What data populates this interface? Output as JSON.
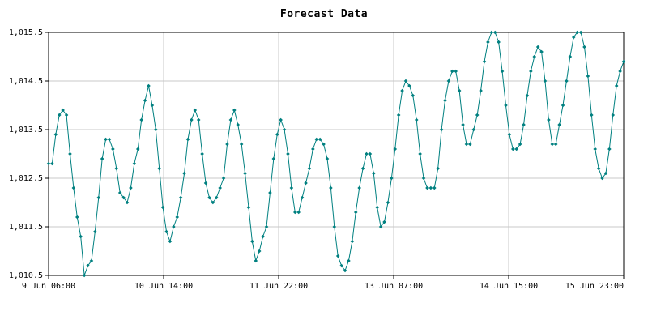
{
  "chart_data": {
    "type": "line",
    "title": "Forecast Data",
    "xlabel": "",
    "ylabel": "",
    "grid": true,
    "line_color": "#008080",
    "marker_color": "#008080",
    "y_tick_labels": [
      "1,010.5",
      "1,011.5",
      "1,012.5",
      "1,013.5",
      "1,014.5",
      "1,015.5"
    ],
    "y_ticks": [
      1010.5,
      1011.5,
      1012.5,
      1013.5,
      1014.5,
      1015.5
    ],
    "ylim": [
      1010.5,
      1015.5
    ],
    "x_tick_labels": [
      "9 Jun 06:00",
      "10 Jun 14:00",
      "11 Jun 22:00",
      "13 Jun 07:00",
      "14 Jun 15:00",
      "15 Jun 23:00"
    ],
    "x_interval_hours": 1,
    "series": [
      {
        "values": [
          1012.8,
          1012.8,
          1013.4,
          1013.8,
          1013.9,
          1013.8,
          1013.0,
          1012.3,
          1011.7,
          1011.3,
          1010.5,
          1010.7,
          1010.8,
          1011.4,
          1012.1,
          1012.9,
          1013.3,
          1013.3,
          1013.1,
          1012.7,
          1012.2,
          1012.1,
          1012.0,
          1012.3,
          1012.8,
          1013.1,
          1013.7,
          1014.1,
          1014.4,
          1014.0,
          1013.5,
          1012.7,
          1011.9,
          1011.4,
          1011.2,
          1011.5,
          1011.7,
          1012.1,
          1012.6,
          1013.3,
          1013.7,
          1013.9,
          1013.7,
          1013.0,
          1012.4,
          1012.1,
          1012.0,
          1012.1,
          1012.3,
          1012.5,
          1013.2,
          1013.7,
          1013.9,
          1013.6,
          1013.2,
          1012.6,
          1011.9,
          1011.2,
          1010.8,
          1011.0,
          1011.3,
          1011.5,
          1012.2,
          1012.9,
          1013.4,
          1013.7,
          1013.5,
          1013.0,
          1012.3,
          1011.8,
          1011.8,
          1012.1,
          1012.4,
          1012.7,
          1013.1,
          1013.3,
          1013.3,
          1013.2,
          1012.9,
          1012.3,
          1011.5,
          1010.9,
          1010.7,
          1010.6,
          1010.8,
          1011.2,
          1011.8,
          1012.3,
          1012.7,
          1013.0,
          1013.0,
          1012.6,
          1011.9,
          1011.5,
          1011.6,
          1012.0,
          1012.5,
          1013.1,
          1013.8,
          1014.3,
          1014.5,
          1014.4,
          1014.2,
          1013.7,
          1013.0,
          1012.5,
          1012.3,
          1012.3,
          1012.3,
          1012.7,
          1013.5,
          1014.1,
          1014.5,
          1014.7,
          1014.7,
          1014.3,
          1013.6,
          1013.2,
          1013.2,
          1013.5,
          1013.8,
          1014.3,
          1014.9,
          1015.3,
          1015.5,
          1015.5,
          1015.3,
          1014.7,
          1014.0,
          1013.4,
          1013.1,
          1013.1,
          1013.2,
          1013.6,
          1014.2,
          1014.7,
          1015.0,
          1015.2,
          1015.1,
          1014.5,
          1013.7,
          1013.2,
          1013.2,
          1013.6,
          1014.0,
          1014.5,
          1015.0,
          1015.4,
          1015.5,
          1015.5,
          1015.2,
          1014.6,
          1013.8,
          1013.1,
          1012.7,
          1012.5,
          1012.6,
          1013.1,
          1013.8,
          1014.4,
          1014.7,
          1014.9
        ]
      }
    ]
  }
}
